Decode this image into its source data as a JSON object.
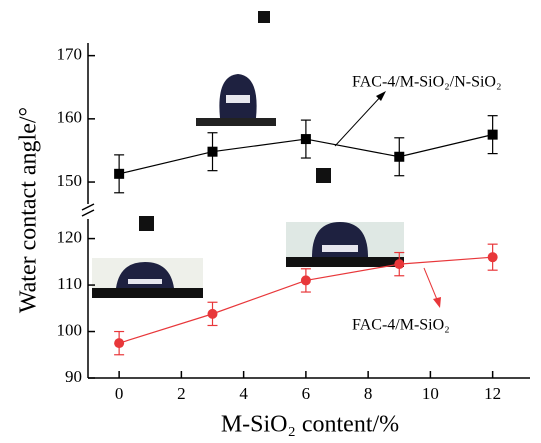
{
  "chart_data": {
    "type": "line",
    "y_label": "Water contact angle/°",
    "x_label": "M-SiO₂ content/%",
    "x": [
      0,
      3,
      6,
      9,
      12
    ],
    "xlim": [
      -1,
      13.2
    ],
    "xticks": [
      0,
      2,
      4,
      6,
      8,
      10,
      12
    ],
    "ylim": [
      90,
      172
    ],
    "y_break": [
      124,
      147
    ],
    "yticks": [
      90,
      100,
      110,
      120,
      150,
      160,
      170
    ],
    "series": [
      {
        "name": "FAC-4/M-SiO₂/N-SiO₂",
        "color": "#000000",
        "marker": "square",
        "values": [
          151.3,
          154.8,
          156.8,
          154.0,
          157.5
        ],
        "errors": [
          3,
          3,
          3,
          3,
          3
        ]
      },
      {
        "name": "FAC-4/M-SiO₂",
        "color": "#e8373a",
        "marker": "circle",
        "values": [
          97.5,
          103.8,
          111.0,
          114.5,
          116.0
        ],
        "errors": [
          2.5,
          2.5,
          2.5,
          2.5,
          2.8
        ]
      }
    ]
  }
}
